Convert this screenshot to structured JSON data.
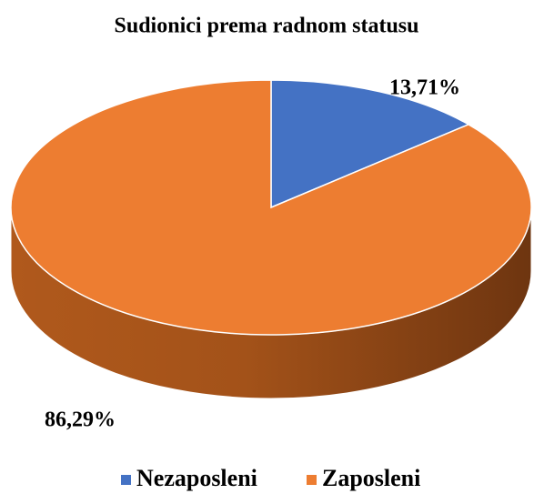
{
  "chart_data": {
    "type": "pie",
    "title": "Sudionici prema radnom statusu",
    "categories": [
      "Nezaposleni",
      "Zaposleni"
    ],
    "values": [
      13.71,
      86.29
    ],
    "value_labels": [
      "13,71%",
      "86,29%"
    ],
    "colors": [
      "#4472c4",
      "#ed7d31"
    ],
    "legend": "bottom"
  }
}
